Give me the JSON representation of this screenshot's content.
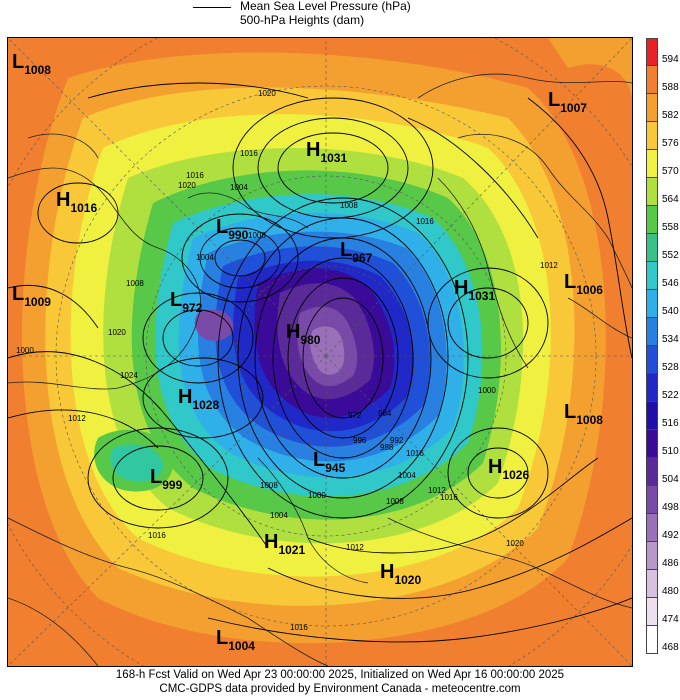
{
  "legend": {
    "line1": "Mean Sea Level Pressure (hPa)",
    "line2": "500-hPa Heights (dam)"
  },
  "colorbar": {
    "levels": [
      "594",
      "588",
      "582",
      "576",
      "570",
      "564",
      "558",
      "552",
      "546",
      "540",
      "534",
      "528",
      "522",
      "516",
      "510",
      "504",
      "498",
      "492",
      "486",
      "480",
      "474",
      "468"
    ],
    "colors": [
      "#e8202a",
      "#f08030",
      "#f4a030",
      "#f8c838",
      "#f0f040",
      "#b0e040",
      "#58c848",
      "#38c088",
      "#30c8c8",
      "#30b0e8",
      "#2880e0",
      "#2050d8",
      "#2028c8",
      "#2010a8",
      "#3a0a98",
      "#5a2a98",
      "#7a4aa8",
      "#9a70b8",
      "#b898c8",
      "#d8c0e0",
      "#ece0f0",
      "#ffffff"
    ]
  },
  "centers": [
    {
      "type": "L",
      "value": "1008"
    },
    {
      "type": "L",
      "value": "1007"
    },
    {
      "type": "H",
      "value": "1031"
    },
    {
      "type": "H",
      "value": "1016"
    },
    {
      "type": "L",
      "value": "990"
    },
    {
      "type": "L",
      "value": "967"
    },
    {
      "type": "L",
      "value": "1009"
    },
    {
      "type": "L",
      "value": "972"
    },
    {
      "type": "H",
      "value": "980"
    },
    {
      "type": "H",
      "value": "1031"
    },
    {
      "type": "L",
      "value": "1006"
    },
    {
      "type": "H",
      "value": "1028"
    },
    {
      "type": "L",
      "value": "1008"
    },
    {
      "type": "L",
      "value": "945"
    },
    {
      "type": "H",
      "value": "1026"
    },
    {
      "type": "L",
      "value": "999"
    },
    {
      "type": "H",
      "value": "1021"
    },
    {
      "type": "H",
      "value": "1020"
    },
    {
      "type": "L",
      "value": "1004"
    }
  ],
  "isobar_labels": [
    "1020",
    "1016",
    "1020",
    "1004",
    "1008",
    "1004",
    "1016",
    "1012",
    "1008",
    "1020",
    "1024",
    "1012",
    "1008",
    "1000",
    "1016",
    "1012",
    "1016",
    "1020",
    "1016",
    "1000",
    "1008",
    "1012",
    "1016",
    "1016",
    "1004",
    "992",
    "984",
    "972",
    "1000",
    "1004",
    "1008",
    "996",
    "988"
  ],
  "footer": {
    "line1": "168-h Fcst Valid on Wed Apr 23 00:00:00 2025, Initialized on Wed Apr 16 00:00:00 2025",
    "line2": "CMC-GDPS data provided by Environment Canada - meteocentre.com"
  }
}
